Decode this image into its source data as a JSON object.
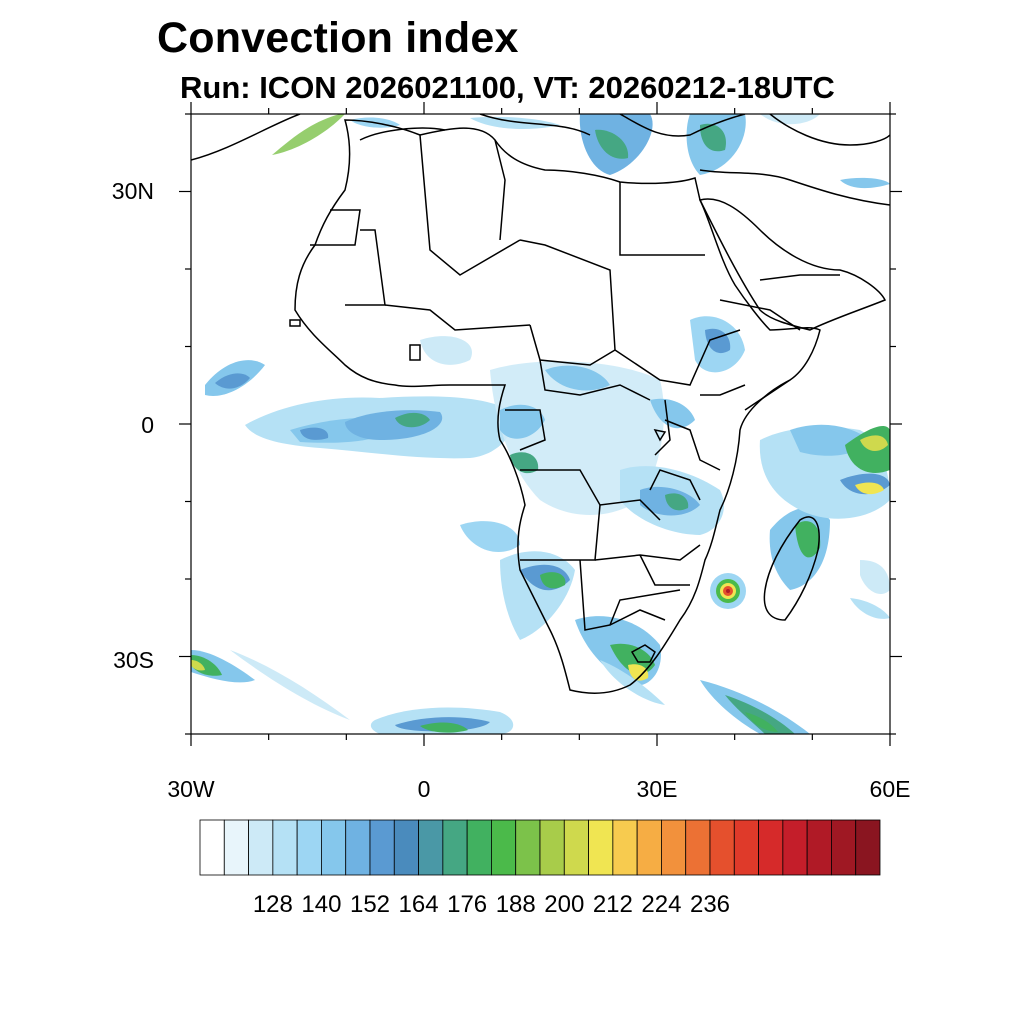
{
  "title": "Convection index",
  "subtitle": "Run: ICON 2026021100,  VT: 20260212-18UTC",
  "map": {
    "lon_range": [
      -30,
      60
    ],
    "lat_range": [
      -40,
      40
    ],
    "lat_labels": [
      "30N",
      "0",
      "30S"
    ],
    "lon_labels": [
      "30W",
      "0",
      "30E",
      "60E"
    ]
  },
  "colorbar": {
    "colors": [
      "#ffffff",
      "#e8f5fb",
      "#cdeaf7",
      "#b5e1f5",
      "#9dd6f3",
      "#85c7ec",
      "#6fb2e2",
      "#5a9ad2",
      "#4a8bbd",
      "#4a98a6",
      "#45a783",
      "#41b160",
      "#4bba4a",
      "#7cc24a",
      "#a8cc4a",
      "#cfd94d",
      "#f0e552",
      "#f7cb4f",
      "#f6ad44",
      "#f2913c",
      "#ec7134",
      "#e5502d",
      "#df3a2a",
      "#d62a2a",
      "#c41e2a",
      "#b01a26",
      "#9f1823",
      "#8a1520"
    ],
    "labels": [
      "128",
      "140",
      "152",
      "164",
      "176",
      "188",
      "200",
      "212",
      "224",
      "236"
    ]
  }
}
